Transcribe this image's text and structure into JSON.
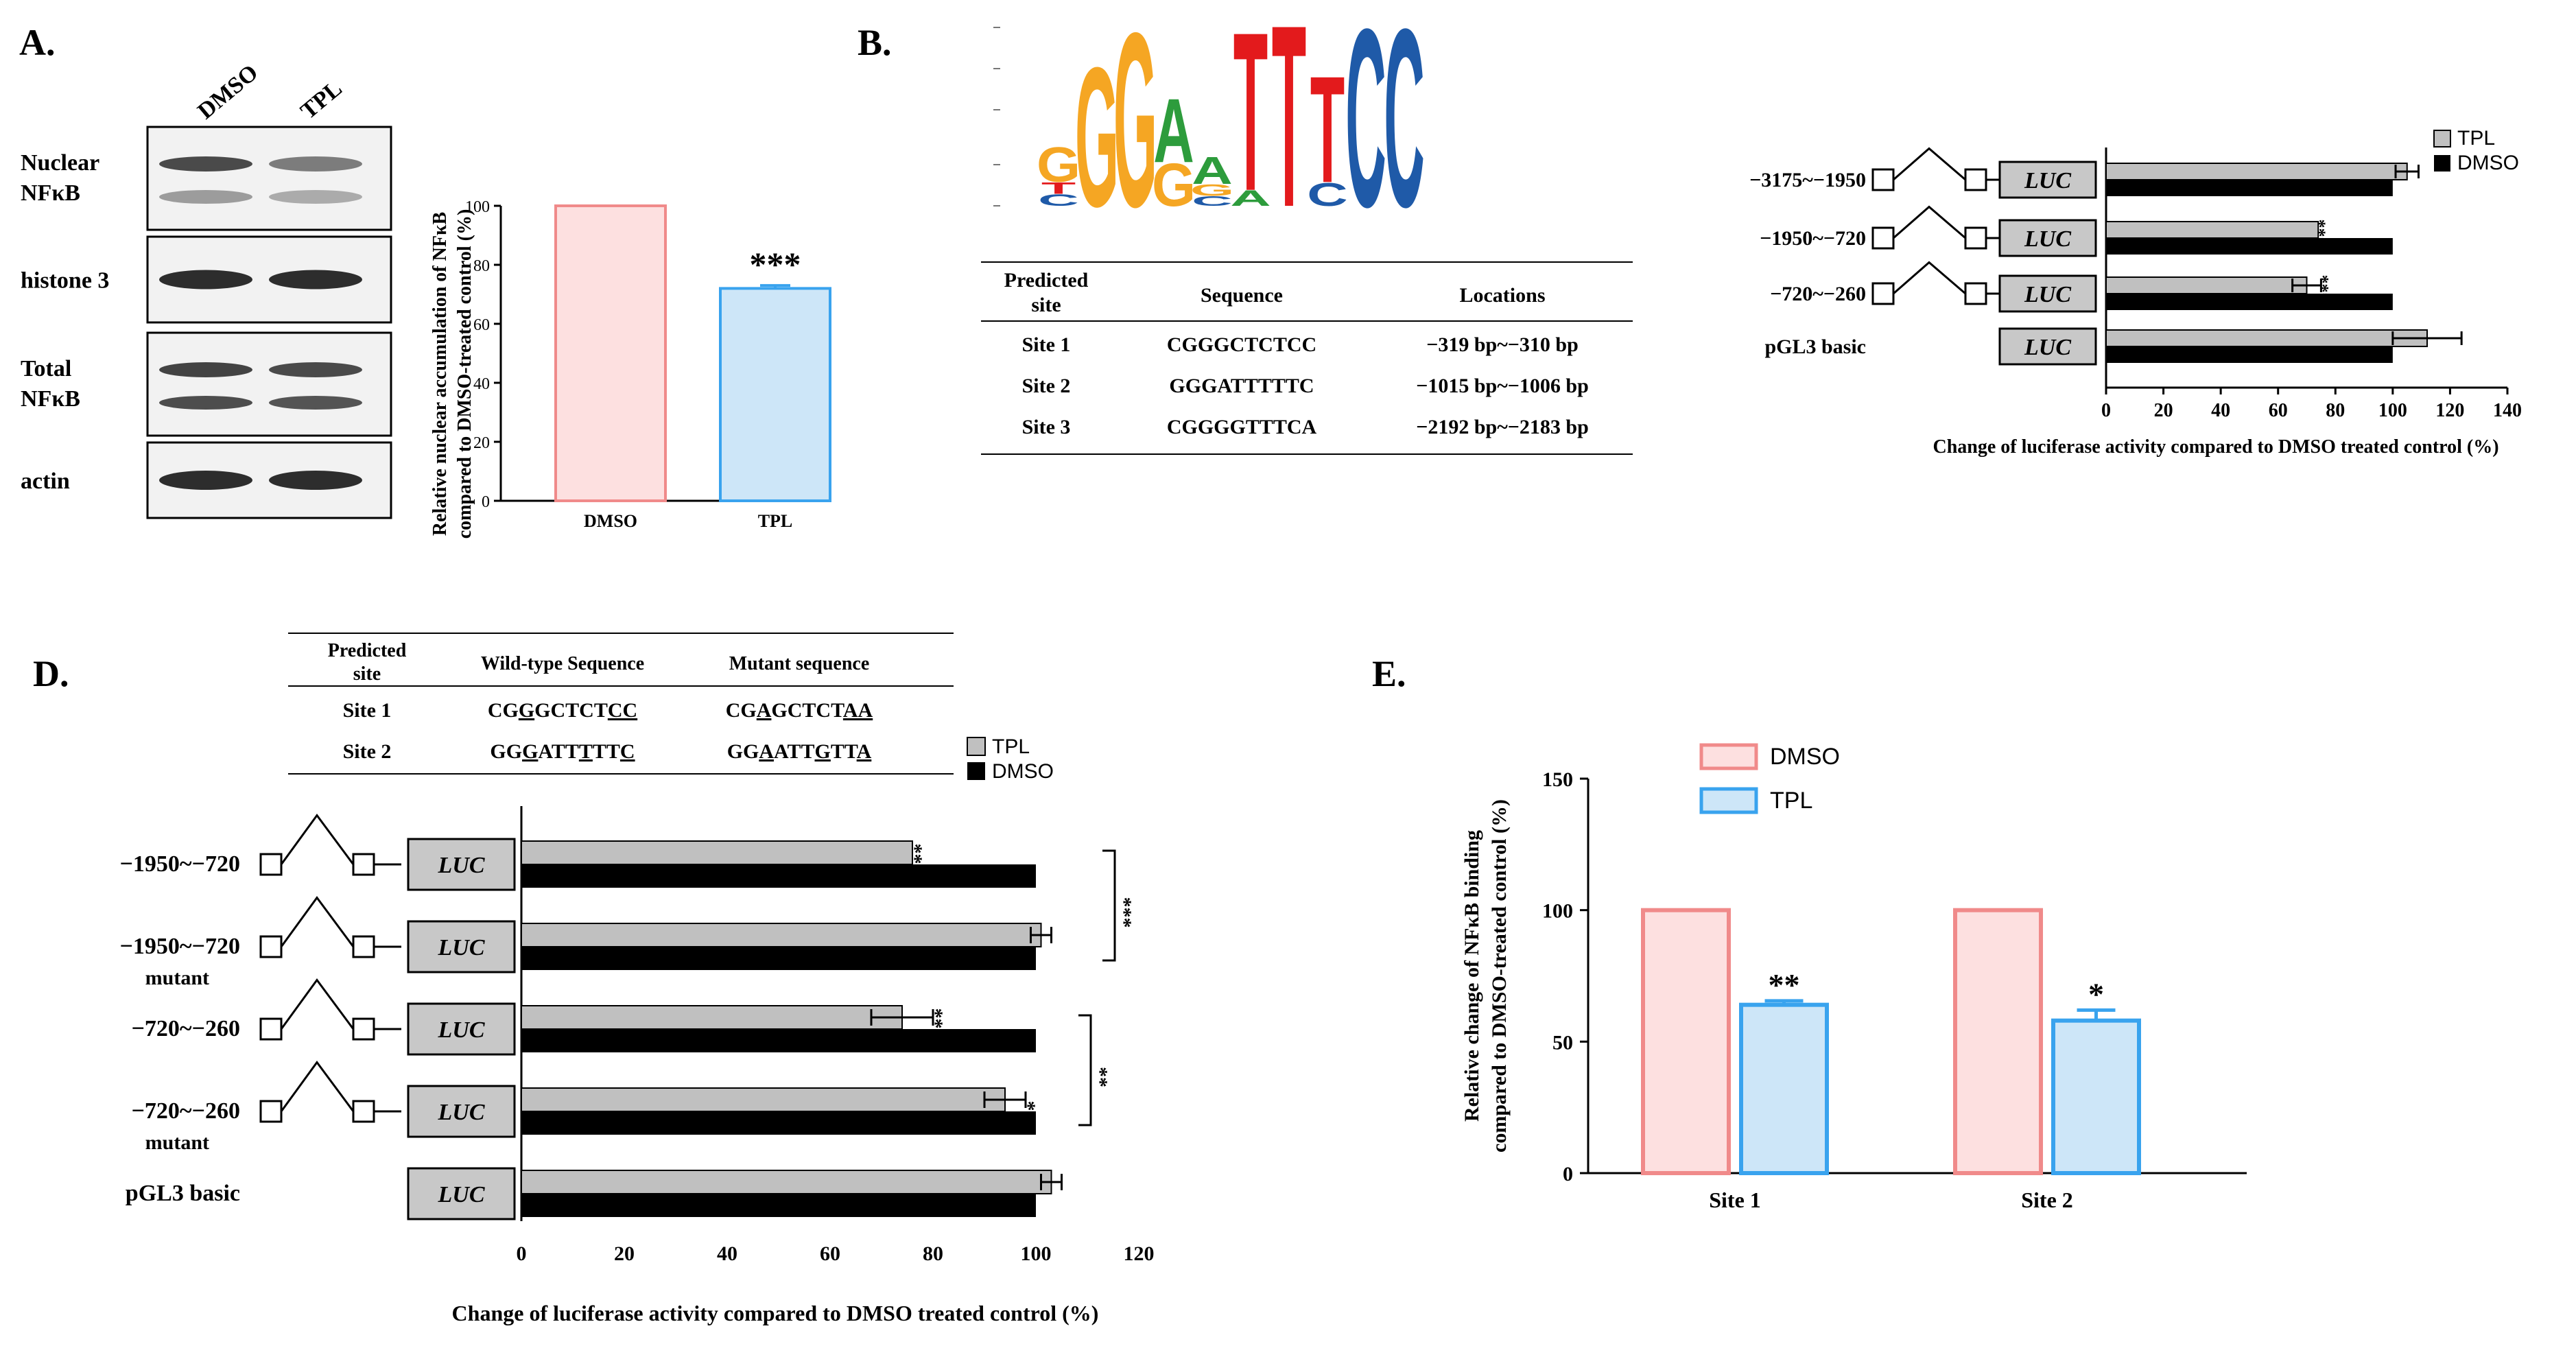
{
  "colors": {
    "dmso_fill": "#fde0e0",
    "dmso_edge": "#f08a8a",
    "tpl_fill": "#cde6f8",
    "tpl_edge": "#39a3ee",
    "gray_bar": "#c0c0c0",
    "black_bar": "#000000",
    "luc_fill": "#c8c8c8",
    "logo_orange": "#f5a623",
    "logo_green": "#2d9c3c",
    "logo_red": "#e31a1c",
    "logo_blue": "#1f5aa8"
  },
  "panels": {
    "A": {
      "label": "A.",
      "lanes": [
        "DMSO",
        "TPL"
      ],
      "blots": [
        {
          "label": "Nuclear\nNFκB",
          "bands": [
            {
              "upper": 0.8,
              "lower": 0.3
            },
            {
              "upper": 0.45,
              "lower": 0.2
            }
          ]
        },
        {
          "label": "histone 3",
          "bands": [
            {
              "upper": 1.0,
              "lower": 0
            },
            {
              "upper": 1.0,
              "lower": 0
            }
          ]
        },
        {
          "label": "Total\nNFκB",
          "bands": [
            {
              "upper": 0.85,
              "lower": 0.85
            },
            {
              "upper": 0.8,
              "lower": 0.8
            }
          ]
        },
        {
          "label": "actin",
          "bands": [
            {
              "upper": 1.0,
              "lower": 0
            },
            {
              "upper": 1.0,
              "lower": 0
            }
          ]
        }
      ]
    },
    "B": {
      "label": "B.",
      "logo_letters": [
        {
          "pos": 1,
          "stack": [
            {
              "l": "C",
              "h": 0.06,
              "color": "#1f5aa8"
            },
            {
              "l": "T",
              "h": 0.06,
              "color": "#e31a1c"
            },
            {
              "l": "G",
              "h": 0.18,
              "color": "#f5a623"
            }
          ]
        },
        {
          "pos": 2,
          "stack": [
            {
              "l": "G",
              "h": 0.72,
              "color": "#f5a623"
            }
          ]
        },
        {
          "pos": 3,
          "stack": [
            {
              "l": "G",
              "h": 0.9,
              "color": "#f5a623"
            }
          ]
        },
        {
          "pos": 4,
          "stack": [
            {
              "l": "G",
              "h": 0.22,
              "color": "#f5a623"
            },
            {
              "l": "A",
              "h": 0.33,
              "color": "#2d9c3c"
            }
          ]
        },
        {
          "pos": 5,
          "stack": [
            {
              "l": "C",
              "h": 0.05,
              "color": "#1f5aa8"
            },
            {
              "l": "G",
              "h": 0.06,
              "color": "#f5a623"
            },
            {
              "l": "A",
              "h": 0.14,
              "color": "#2d9c3c"
            }
          ]
        },
        {
          "pos": 6,
          "stack": [
            {
              "l": "A",
              "h": 0.08,
              "color": "#2d9c3c"
            },
            {
              "l": "T",
              "h": 0.82,
              "color": "#e31a1c"
            }
          ]
        },
        {
          "pos": 7,
          "stack": [
            {
              "l": "T",
              "h": 0.94,
              "color": "#e31a1c"
            }
          ]
        },
        {
          "pos": 8,
          "stack": [
            {
              "l": "C",
              "h": 0.12,
              "color": "#1f5aa8"
            },
            {
              "l": "T",
              "h": 0.55,
              "color": "#e31a1c"
            }
          ]
        },
        {
          "pos": 9,
          "stack": [
            {
              "l": "C",
              "h": 0.92,
              "color": "#1f5aa8"
            }
          ]
        },
        {
          "pos": 10,
          "stack": [
            {
              "l": "C",
              "h": 0.92,
              "color": "#1f5aa8"
            }
          ]
        }
      ],
      "table": {
        "headers": [
          "Predicted\nsite",
          "Sequence",
          "Locations"
        ],
        "rows": [
          [
            "Site 1",
            "CGGGCTCTCC",
            "−319 bp~−310 bp"
          ],
          [
            "Site 2",
            "GGGATTTTTC",
            "−1015 bp~−1006 bp"
          ],
          [
            "Site 3",
            "CGGGGTTTCA",
            "−2192 bp~−2183 bp"
          ]
        ]
      }
    },
    "D_table": {
      "label": "D.",
      "headers": [
        "Predicted\nsite",
        "Wild-type Sequence",
        "Mutant sequence"
      ],
      "rows": [
        {
          "site": "Site 1",
          "wt": [
            [
              "CG",
              false
            ],
            [
              "G",
              true
            ],
            [
              "GCTCT",
              false
            ],
            [
              "CC",
              true
            ]
          ],
          "mut": [
            [
              "CG",
              false
            ],
            [
              "A",
              true
            ],
            [
              "GCTCT",
              false
            ],
            [
              "AA",
              true
            ]
          ]
        },
        {
          "site": "Site 2",
          "wt": [
            [
              "GG",
              false
            ],
            [
              "G",
              true
            ],
            [
              "ATT",
              false
            ],
            [
              "T",
              true
            ],
            [
              "TT",
              false
            ],
            [
              "C",
              true
            ]
          ],
          "mut": [
            [
              "GG",
              false
            ],
            [
              "A",
              true
            ],
            [
              "ATT",
              false
            ],
            [
              "G",
              true
            ],
            [
              "TT",
              false
            ],
            [
              "A",
              true
            ]
          ]
        }
      ]
    },
    "E": {
      "label": "E."
    }
  },
  "chart_data": [
    {
      "panel": "A",
      "type": "bar",
      "categories": [
        "DMSO",
        "TPL"
      ],
      "values": [
        100,
        72
      ],
      "errors": [
        0,
        1
      ],
      "significance": [
        "",
        "***"
      ],
      "ylabel": "Relative nuclear accumulation of NFκB compared to DMSO-treated control (%)",
      "ylim": [
        0,
        100
      ],
      "yticks": [
        0,
        20,
        40,
        60,
        80,
        100
      ]
    },
    {
      "panel": "C",
      "type": "bar",
      "orientation": "horizontal",
      "categories": [
        "−3175~−1950",
        "−1950~−720",
        "−720~−260",
        "pGL3 basic"
      ],
      "series": [
        {
          "name": "TPL",
          "values": [
            105,
            74,
            70,
            112
          ],
          "errors": [
            4,
            0,
            5,
            12
          ],
          "significance": [
            "",
            "***",
            "***",
            ""
          ]
        },
        {
          "name": "DMSO",
          "values": [
            100,
            100,
            100,
            100
          ]
        }
      ],
      "xlabel": "Change of luciferase activity compared to DMSO treated control (%)",
      "xlim": [
        0,
        140
      ],
      "xticks": [
        0,
        20,
        40,
        60,
        80,
        100,
        120,
        140
      ],
      "legend": "top-right"
    },
    {
      "panel": "D",
      "type": "bar",
      "orientation": "horizontal",
      "categories": [
        "−1950~−720",
        "−1950~−720\nmutant",
        "−720~−260",
        "−720~−260\nmutant",
        "pGL3  basic"
      ],
      "series": [
        {
          "name": "TPL",
          "values": [
            76,
            101,
            74,
            94,
            103
          ],
          "errors": [
            0,
            2,
            6,
            4,
            2
          ],
          "significance": [
            "***",
            "",
            "***",
            "*",
            ""
          ]
        },
        {
          "name": "DMSO",
          "values": [
            100,
            100,
            100,
            100,
            100
          ]
        }
      ],
      "brackets": [
        {
          "from": 0,
          "to": 1,
          "label": "***"
        },
        {
          "from": 2,
          "to": 3,
          "label": "**"
        }
      ],
      "xlabel": "Change of luciferase activity compared  to DMSO  treated  control  (%)",
      "xlim": [
        0,
        120
      ],
      "xticks": [
        0,
        20,
        40,
        60,
        80,
        100,
        120
      ],
      "legend": "top-right"
    },
    {
      "panel": "E",
      "type": "bar",
      "categories": [
        "Site 1",
        "Site 2"
      ],
      "series": [
        {
          "name": "DMSO",
          "values": [
            100,
            100
          ]
        },
        {
          "name": "TPL",
          "values": [
            64,
            58
          ],
          "errors": [
            1.5,
            4
          ],
          "significance": [
            "**",
            "*"
          ]
        }
      ],
      "ylabel": "Relative  change  of  NFκB  binding compared  to  DMSO-treated  control  (%)",
      "ylim": [
        0,
        150
      ],
      "yticks": [
        0,
        50,
        100,
        150
      ],
      "legend": "top-left"
    }
  ]
}
